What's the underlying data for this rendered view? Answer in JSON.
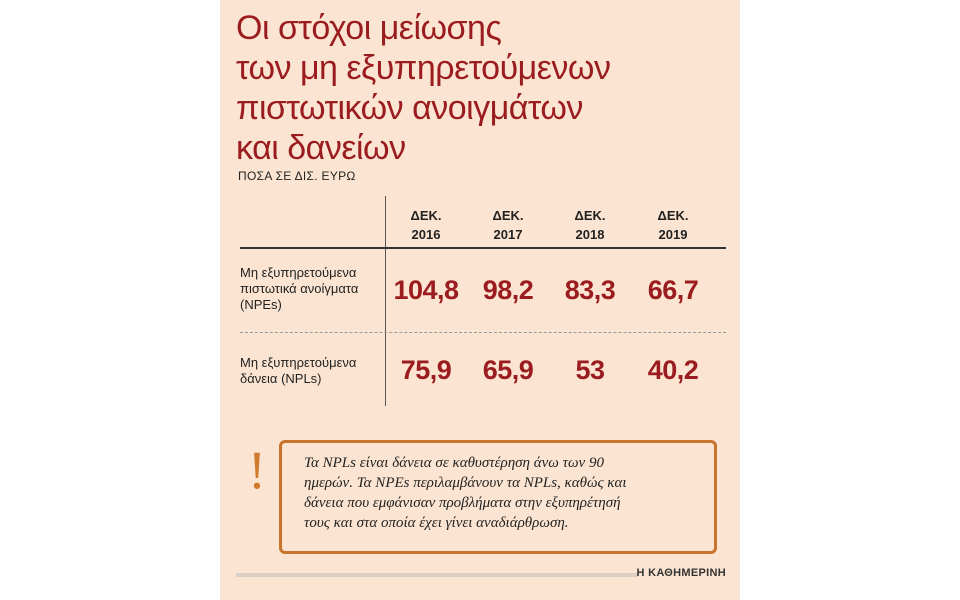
{
  "title_lines": [
    "Οι στόχοι μείωσης",
    "των μη εξυπηρετούμενων",
    "πιστωτικών ανοιγμάτων",
    "και δανείων"
  ],
  "unit": "ΠΟΣΑ ΣΕ ΔΙΣ. ΕΥΡΩ",
  "columns": [
    {
      "line1": "ΔΕΚ.",
      "line2": "2016"
    },
    {
      "line1": "ΔΕΚ.",
      "line2": "2017"
    },
    {
      "line1": "ΔΕΚ.",
      "line2": "2018"
    },
    {
      "line1": "ΔΕΚ.",
      "line2": "2019"
    }
  ],
  "rows": [
    {
      "label_lines": [
        "Μη εξυπηρετούμενα",
        "πιστωτικά ανοίγματα",
        "(NPEs)"
      ],
      "values": [
        "104,8",
        "98,2",
        "83,3",
        "66,7"
      ]
    },
    {
      "label_lines": [
        "Μη εξυπηρετούμενα",
        "δάνεια (NPLs)"
      ],
      "values": [
        "75,9",
        "65,9",
        "53",
        "40,2"
      ]
    }
  ],
  "note_mark": "!",
  "note_lines": [
    "Τα NPLs είναι δάνεια σε καθυστέρηση άνω των 90",
    "ημερών. Τα NPEs περιλαμβάνουν τα NPLs, καθώς και",
    "δάνεια που εμφάνισαν προβλήματα στην εξυπηρέτησή",
    "τους και στα οποία έχει γίνει αναδιάρθρωση."
  ],
  "brand": "Η ΚΑΘΗΜΕΡΙΝΗ",
  "colors": {
    "background": "#fbe5d2",
    "accent": "#9b1c1f",
    "note_border": "#c8742c"
  }
}
